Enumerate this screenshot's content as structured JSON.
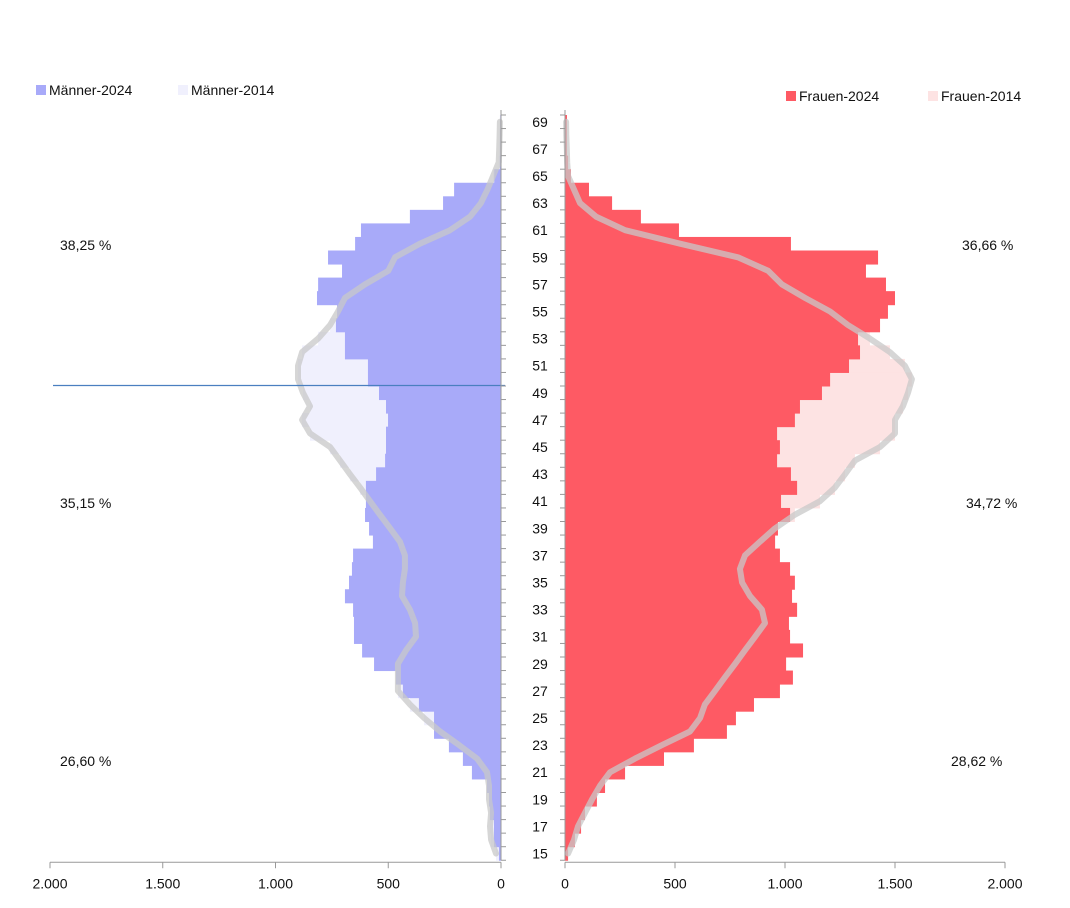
{
  "chart_data": {
    "type": "bar",
    "subtype": "population-pyramid",
    "ages": [
      69,
      68,
      67,
      66,
      65,
      64,
      63,
      62,
      61,
      60,
      59,
      58,
      57,
      56,
      55,
      54,
      53,
      52,
      51,
      50,
      49,
      48,
      47,
      46,
      45,
      44,
      43,
      42,
      41,
      40,
      39,
      38,
      37,
      36,
      35,
      34,
      33,
      32,
      31,
      30,
      29,
      28,
      27,
      26,
      25,
      24,
      23,
      22,
      21,
      20,
      19,
      18,
      17,
      16,
      15
    ],
    "age_tick_labels": [
      "69",
      "67",
      "65",
      "63",
      "61",
      "59",
      "57",
      "55",
      "53",
      "51",
      "49",
      "47",
      "45",
      "43",
      "41",
      "39",
      "37",
      "35",
      "33",
      "31",
      "29",
      "27",
      "25",
      "23",
      "21",
      "19",
      "17",
      "15"
    ],
    "series": [
      {
        "name": "Männer-2024",
        "side": "left",
        "color": "#a8aaf9",
        "values": [
          3,
          3,
          3,
          5,
          30,
          208,
          257,
          404,
          621,
          647,
          767,
          705,
          811,
          816,
          727,
          732,
          692,
          692,
          590,
          590,
          541,
          510,
          501,
          510,
          510,
          514,
          554,
          599,
          599,
          603,
          585,
          568,
          656,
          661,
          674,
          692,
          656,
          652,
          652,
          616,
          563,
          466,
          435,
          364,
          297,
          297,
          231,
          169,
          129,
          62,
          53,
          49,
          31,
          31,
          9
        ]
      },
      {
        "name": "Männer-2014",
        "side": "left",
        "color": "#f0f0fd",
        "values": [
          5,
          6,
          8,
          10,
          35,
          60,
          89,
          137,
          226,
          360,
          470,
          500,
          603,
          692,
          723,
          758,
          811,
          882,
          900,
          900,
          878,
          847,
          882,
          847,
          758,
          714,
          670,
          625,
          581,
          537,
          492,
          448,
          426,
          426,
          435,
          439,
          404,
          381,
          377,
          421,
          457,
          457,
          457,
          404,
          341,
          270,
          186,
          106,
          62,
          53,
          53,
          44,
          49,
          44,
          22
        ]
      },
      {
        "name": "Frauen-2024",
        "side": "right",
        "color": "#fe5a64",
        "values": [
          9,
          9,
          9,
          14,
          27,
          109,
          214,
          345,
          518,
          1027,
          1423,
          1368,
          1459,
          1500,
          1468,
          1432,
          1332,
          1341,
          1291,
          1205,
          1168,
          1068,
          1045,
          964,
          977,
          964,
          1027,
          1055,
          982,
          1023,
          968,
          955,
          977,
          1023,
          1045,
          1032,
          1055,
          1018,
          1023,
          1082,
          1005,
          1036,
          977,
          859,
          777,
          736,
          586,
          450,
          273,
          182,
          145,
          91,
          73,
          45,
          14
        ]
      },
      {
        "name": "Frauen-2014",
        "side": "right",
        "color": "#fde3e3",
        "values": [
          5,
          6,
          8,
          10,
          14,
          41,
          68,
          141,
          273,
          523,
          786,
          923,
          986,
          1091,
          1205,
          1286,
          1386,
          1477,
          1545,
          1577,
          1559,
          1536,
          1500,
          1500,
          1432,
          1318,
          1273,
          1227,
          1159,
          1045,
          955,
          886,
          818,
          795,
          805,
          841,
          895,
          909,
          864,
          818,
          773,
          727,
          682,
          636,
          614,
          568,
          441,
          318,
          205,
          159,
          123,
          91,
          59,
          41,
          14
        ]
      }
    ],
    "x_ticks_left": [
      "2.000",
      "1.500",
      "1.000",
      "500",
      "0"
    ],
    "x_ticks_right": [
      "0",
      "500",
      "1.000",
      "1.500",
      "2.000"
    ],
    "xlim": [
      0,
      2000
    ],
    "annotations_left": [
      "38,25 %",
      "35,15 %",
      "26,60 %"
    ],
    "annotations_right": [
      "36,66 %",
      "34,72 %",
      "28,62 %"
    ],
    "marker_line_age": 49.5,
    "legend_left": [
      "Männer-2024",
      "Männer-2014"
    ],
    "legend_right": [
      "Frauen-2024",
      "Frauen-2014"
    ],
    "line_color_2014": "#c8c8c8",
    "marker_line_color": "#4a7fc0"
  }
}
